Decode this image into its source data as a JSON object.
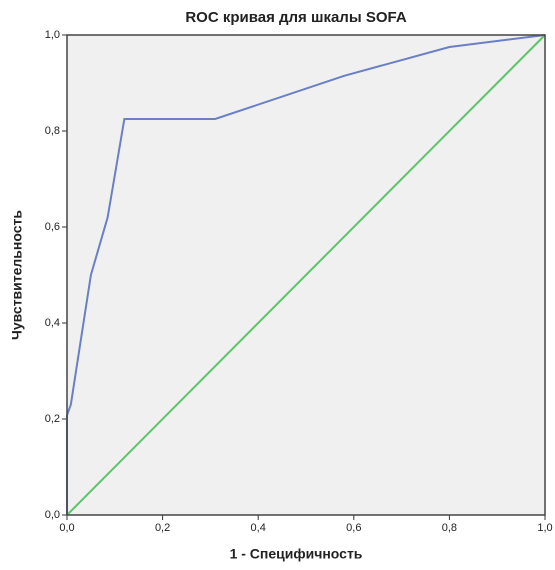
{
  "chart_data": {
    "type": "line",
    "title": "ROC кривая для шкалы SOFA",
    "x_label": "1 - Специфичность",
    "y_label": "Чувствительность",
    "xlim": [
      0,
      1
    ],
    "ylim": [
      0,
      1
    ],
    "xticks": [
      {
        "value": 0,
        "label": "0,0"
      },
      {
        "value": 0.2,
        "label": "0,2"
      },
      {
        "value": 0.4,
        "label": "0,4"
      },
      {
        "value": 0.6,
        "label": "0,6"
      },
      {
        "value": 0.8,
        "label": "0,8"
      },
      {
        "value": 1,
        "label": "1,0"
      }
    ],
    "yticks": [
      {
        "value": 0,
        "label": "0,0"
      },
      {
        "value": 0.2,
        "label": "0,2"
      },
      {
        "value": 0.4,
        "label": "0,4"
      },
      {
        "value": 0.6,
        "label": "0,6"
      },
      {
        "value": 0.8,
        "label": "0,8"
      },
      {
        "value": 1,
        "label": "1,0"
      }
    ],
    "series": [
      {
        "color": "#6a7fc4",
        "x": [
          0,
          0,
          0.008,
          0.05,
          0.085,
          0.12,
          0.31,
          0.58,
          0.8,
          1
        ],
        "values": [
          0,
          0.208,
          0.23,
          0.5,
          0.62,
          0.825,
          0.825,
          0.915,
          0.975,
          1
        ]
      },
      {
        "color": "#5cc46a",
        "x": [
          0,
          1
        ],
        "values": [
          0,
          1
        ]
      }
    ]
  }
}
